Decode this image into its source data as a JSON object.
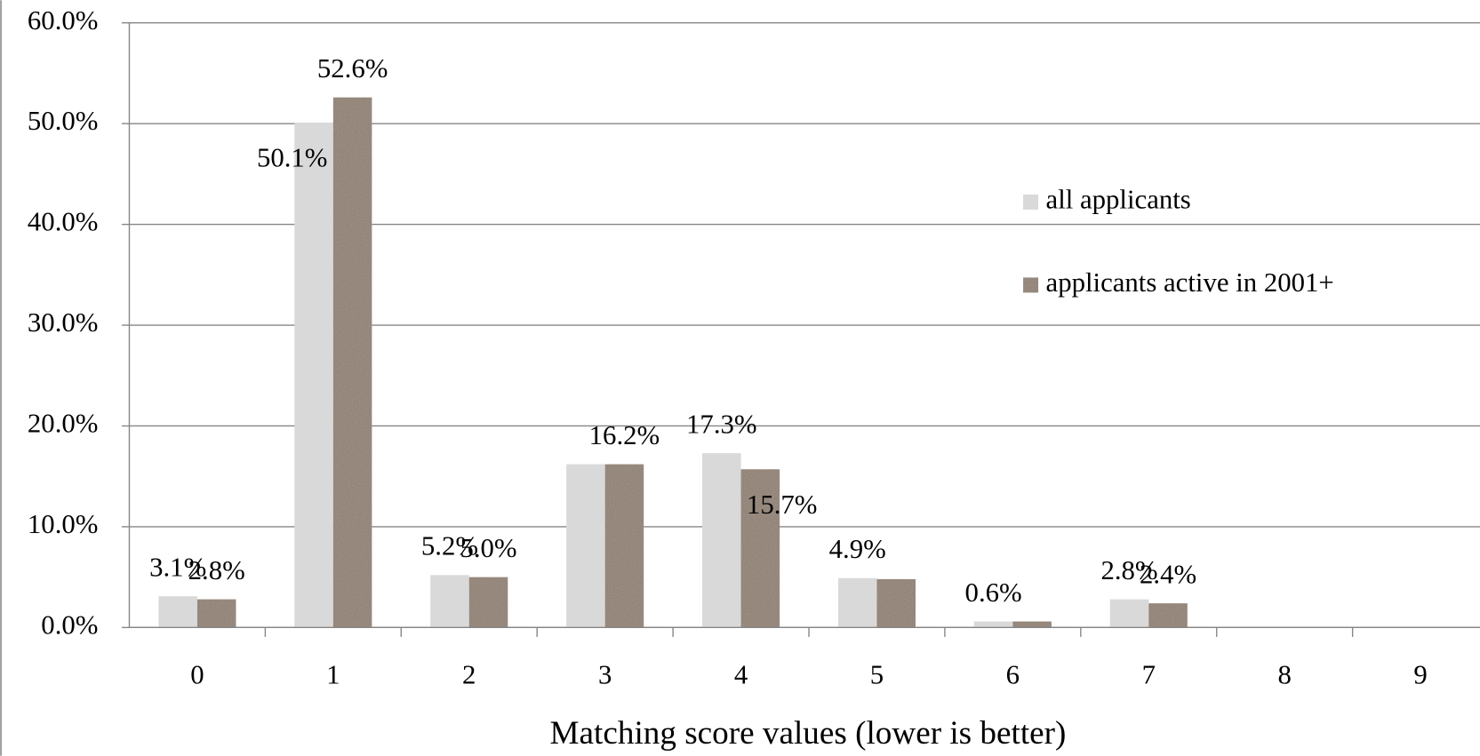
{
  "chart_data": {
    "type": "bar",
    "x_label": "Matching score values (lower is better)",
    "categories": [
      "0",
      "1",
      "2",
      "3",
      "4",
      "5",
      "6",
      "7",
      "8",
      "9"
    ],
    "series": [
      {
        "name": "all applicants",
        "color": "#d9d9d9",
        "values": [
          3.1,
          50.1,
          5.2,
          16.2,
          17.3,
          4.9,
          0.6,
          2.8,
          null,
          null
        ],
        "value_labels": [
          "3.1%",
          "50.1%",
          "5.2%",
          null,
          "17.3%",
          "4.9%",
          "0.6%",
          "2.8%",
          null,
          null
        ]
      },
      {
        "name": "applicants active in 2001+",
        "color": "#a8998c",
        "values": [
          2.8,
          52.6,
          5.0,
          16.2,
          15.7,
          4.8,
          0.6,
          2.4,
          null,
          null
        ],
        "value_labels": [
          "2.8%",
          "52.6%",
          "5.0%",
          "16.2%",
          "15.7%",
          null,
          null,
          "2.4%",
          null,
          null
        ]
      }
    ],
    "ylim": [
      0,
      60
    ],
    "yticks": [
      {
        "value": 0,
        "label": "0.0%"
      },
      {
        "value": 10,
        "label": "10.0%"
      },
      {
        "value": 20,
        "label": "20.0%"
      },
      {
        "value": 30,
        "label": "30.0%"
      },
      {
        "value": 40,
        "label": "40.0%"
      },
      {
        "value": 50,
        "label": "50.0%"
      },
      {
        "value": 60,
        "label": "60.0%"
      }
    ],
    "grid": true
  }
}
